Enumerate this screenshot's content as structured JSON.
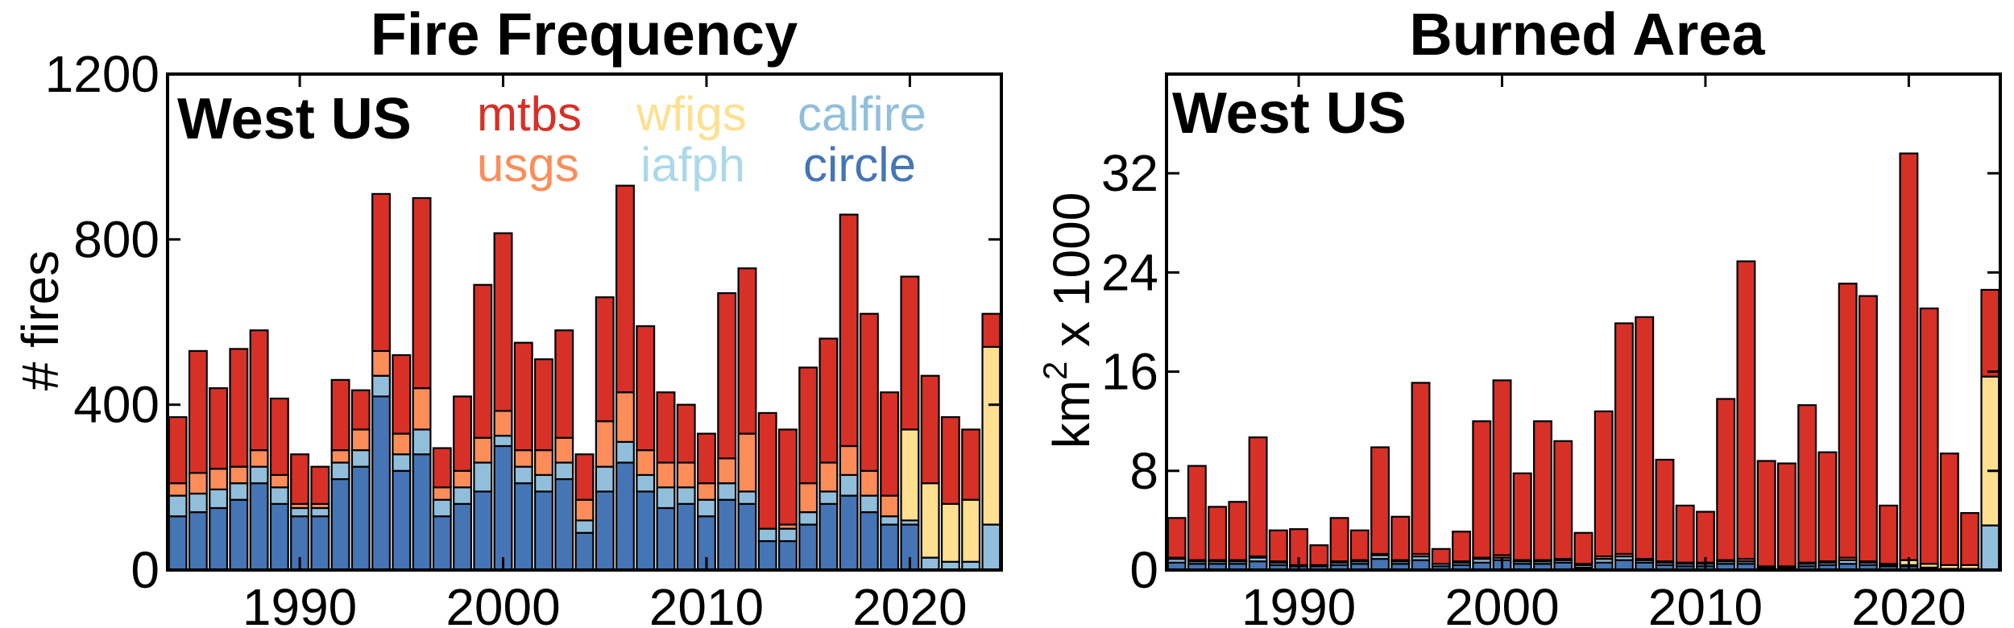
{
  "colors": {
    "mtbs": "#d73027",
    "usgs": "#fc8d59",
    "wfigs": "#fee090",
    "iafph": "#abd9e9",
    "calfire": "#91bfdb",
    "circle": "#4575b4"
  },
  "chart_data": [
    {
      "type": "bar",
      "stacked": true,
      "title": "Fire Frequency",
      "region_label": "West US",
      "ylabel": "# fires",
      "xlabel": "",
      "ylim": [
        0,
        1200
      ],
      "yticks": [
        0,
        400,
        800,
        1200
      ],
      "xticks": [
        1990,
        2000,
        2010,
        2020
      ],
      "legend": {
        "position": "top",
        "entries": [
          {
            "key": "mtbs",
            "label": "mtbs"
          },
          {
            "key": "wfigs",
            "label": "wfigs"
          },
          {
            "key": "calfire",
            "label": "calfire"
          },
          {
            "key": "usgs",
            "label": "usgs"
          },
          {
            "key": "iafph",
            "label": "iafph"
          },
          {
            "key": "circle",
            "label": "circle"
          }
        ]
      },
      "years": [
        1984,
        1985,
        1986,
        1987,
        1988,
        1989,
        1990,
        1991,
        1992,
        1993,
        1994,
        1995,
        1996,
        1997,
        1998,
        1999,
        2000,
        2001,
        2002,
        2003,
        2004,
        2005,
        2006,
        2007,
        2008,
        2009,
        2010,
        2011,
        2012,
        2013,
        2014,
        2015,
        2016,
        2017,
        2018,
        2019,
        2020,
        2021,
        2022,
        2023,
        2024
      ],
      "series": [
        {
          "key": "circle",
          "name": "circle",
          "values": [
            130,
            140,
            150,
            170,
            210,
            160,
            130,
            130,
            220,
            250,
            420,
            240,
            280,
            130,
            160,
            190,
            300,
            210,
            190,
            220,
            90,
            190,
            260,
            190,
            150,
            160,
            130,
            170,
            160,
            70,
            70,
            110,
            160,
            180,
            140,
            110,
            110,
            0,
            0,
            0,
            0
          ]
        },
        {
          "key": "calfire",
          "name": "calfire",
          "values": [
            50,
            45,
            45,
            40,
            40,
            40,
            20,
            20,
            40,
            40,
            50,
            40,
            60,
            40,
            40,
            70,
            25,
            40,
            40,
            40,
            30,
            60,
            50,
            40,
            50,
            40,
            40,
            40,
            30,
            30,
            30,
            30,
            30,
            50,
            40,
            20,
            10,
            30,
            20,
            20,
            110
          ]
        },
        {
          "key": "iafph",
          "name": "iafph",
          "values": [
            0,
            0,
            0,
            0,
            0,
            0,
            0,
            0,
            0,
            0,
            0,
            0,
            0,
            0,
            0,
            0,
            0,
            0,
            0,
            0,
            0,
            0,
            0,
            0,
            0,
            0,
            0,
            0,
            0,
            0,
            0,
            0,
            0,
            0,
            0,
            0,
            0,
            0,
            0,
            0,
            0
          ]
        },
        {
          "key": "wfigs",
          "name": "wfigs",
          "values": [
            0,
            0,
            0,
            0,
            0,
            0,
            0,
            0,
            0,
            0,
            0,
            0,
            0,
            0,
            0,
            0,
            0,
            0,
            0,
            0,
            0,
            0,
            0,
            0,
            0,
            0,
            0,
            0,
            0,
            0,
            0,
            0,
            0,
            0,
            0,
            0,
            220,
            180,
            140,
            150,
            430
          ]
        },
        {
          "key": "usgs",
          "name": "usgs",
          "values": [
            30,
            50,
            50,
            40,
            40,
            30,
            10,
            10,
            30,
            50,
            60,
            50,
            100,
            30,
            40,
            60,
            60,
            40,
            60,
            60,
            50,
            110,
            120,
            60,
            60,
            60,
            40,
            60,
            140,
            0,
            10,
            70,
            70,
            70,
            60,
            50,
            0,
            0,
            0,
            0,
            0
          ]
        },
        {
          "key": "mtbs",
          "name": "mtbs",
          "values": [
            160,
            295,
            195,
            285,
            290,
            185,
            120,
            90,
            170,
            95,
            380,
            190,
            460,
            95,
            180,
            370,
            430,
            260,
            220,
            260,
            110,
            300,
            500,
            300,
            170,
            140,
            120,
            400,
            400,
            280,
            230,
            280,
            300,
            560,
            380,
            250,
            370,
            260,
            210,
            170,
            80
          ]
        }
      ]
    },
    {
      "type": "bar",
      "stacked": true,
      "title": "Burned Area",
      "region_label": "West US",
      "ylabel_main": "km",
      "ylabel_sup": "2",
      "ylabel_tail": " x 1000",
      "xlabel": "",
      "ylim": [
        0,
        40
      ],
      "yticks": [
        0,
        8,
        16,
        24,
        32
      ],
      "xticks": [
        1990,
        2000,
        2010,
        2020
      ],
      "years": [
        1984,
        1985,
        1986,
        1987,
        1988,
        1989,
        1990,
        1991,
        1992,
        1993,
        1994,
        1995,
        1996,
        1997,
        1998,
        1999,
        2000,
        2001,
        2002,
        2003,
        2004,
        2005,
        2006,
        2007,
        2008,
        2009,
        2010,
        2011,
        2012,
        2013,
        2014,
        2015,
        2016,
        2017,
        2018,
        2019,
        2020,
        2021,
        2022,
        2023,
        2024
      ],
      "series": [
        {
          "key": "circle",
          "name": "circle",
          "values": [
            0.6,
            0.5,
            0.5,
            0.5,
            0.7,
            0.4,
            0.3,
            0.3,
            0.4,
            0.5,
            0.9,
            0.5,
            0.8,
            0.3,
            0.4,
            0.6,
            0.8,
            0.5,
            0.5,
            0.6,
            0.2,
            0.6,
            0.8,
            0.6,
            0.4,
            0.3,
            0.3,
            0.5,
            0.5,
            0.2,
            0.2,
            0.3,
            0.4,
            0.5,
            0.4,
            0.3,
            0.3,
            0,
            0,
            0,
            0
          ]
        },
        {
          "key": "calfire",
          "name": "calfire",
          "values": [
            0.3,
            0.2,
            0.2,
            0.2,
            0.3,
            0.2,
            0.1,
            0.1,
            0.2,
            0.2,
            0.3,
            0.2,
            0.3,
            0.2,
            0.2,
            0.3,
            0.2,
            0.2,
            0.2,
            0.2,
            0.2,
            0.3,
            0.3,
            0.2,
            0.2,
            0.2,
            0.2,
            0.2,
            0.2,
            0.1,
            0.1,
            0.2,
            0.2,
            0.3,
            0.2,
            0.1,
            0.1,
            0.2,
            0.1,
            0.1,
            3.6
          ]
        },
        {
          "key": "iafph",
          "name": "iafph",
          "values": [
            0,
            0,
            0,
            0,
            0,
            0,
            0,
            0,
            0,
            0,
            0,
            0,
            0,
            0,
            0,
            0,
            0,
            0,
            0,
            0,
            0,
            0,
            0,
            0,
            0,
            0,
            0,
            0,
            0,
            0,
            0,
            0,
            0,
            0,
            0,
            0,
            0,
            0,
            0,
            0,
            0
          ]
        },
        {
          "key": "wfigs",
          "name": "wfigs",
          "values": [
            0,
            0,
            0,
            0,
            0,
            0,
            0,
            0,
            0,
            0,
            0,
            0,
            0,
            0,
            0,
            0,
            0,
            0,
            0,
            0,
            0,
            0,
            0,
            0,
            0,
            0,
            0,
            0,
            0,
            0,
            0,
            0,
            0,
            0,
            0,
            0,
            0.4,
            0.3,
            0.3,
            0.3,
            12.0
          ]
        },
        {
          "key": "usgs",
          "name": "usgs",
          "values": [
            0.1,
            0.1,
            0.1,
            0.1,
            0.1,
            0.1,
            0,
            0,
            0.1,
            0.1,
            0.1,
            0.1,
            0.2,
            0,
            0.1,
            0.1,
            0.2,
            0.1,
            0.1,
            0.1,
            0.1,
            0.2,
            0.2,
            0.1,
            0.1,
            0.1,
            0.1,
            0.1,
            0.2,
            0,
            0,
            0.1,
            0.1,
            0.2,
            0.1,
            0.1,
            0,
            0,
            0,
            0,
            0
          ]
        },
        {
          "key": "mtbs",
          "name": "mtbs",
          "values": [
            3.2,
            7.6,
            4.3,
            4.7,
            9.6,
            2.5,
            2.9,
            1.6,
            3.5,
            2.4,
            8.6,
            3.5,
            13.8,
            1.2,
            2.4,
            11.0,
            14.1,
            7.0,
            11.2,
            9.5,
            2.5,
            11.7,
            18.6,
            19.5,
            8.2,
            4.6,
            4.1,
            13.0,
            24.0,
            8.5,
            8.3,
            12.7,
            8.8,
            22.1,
            21.4,
            4.7,
            32.8,
            20.6,
            9.0,
            4.2,
            7.0
          ]
        }
      ]
    }
  ]
}
